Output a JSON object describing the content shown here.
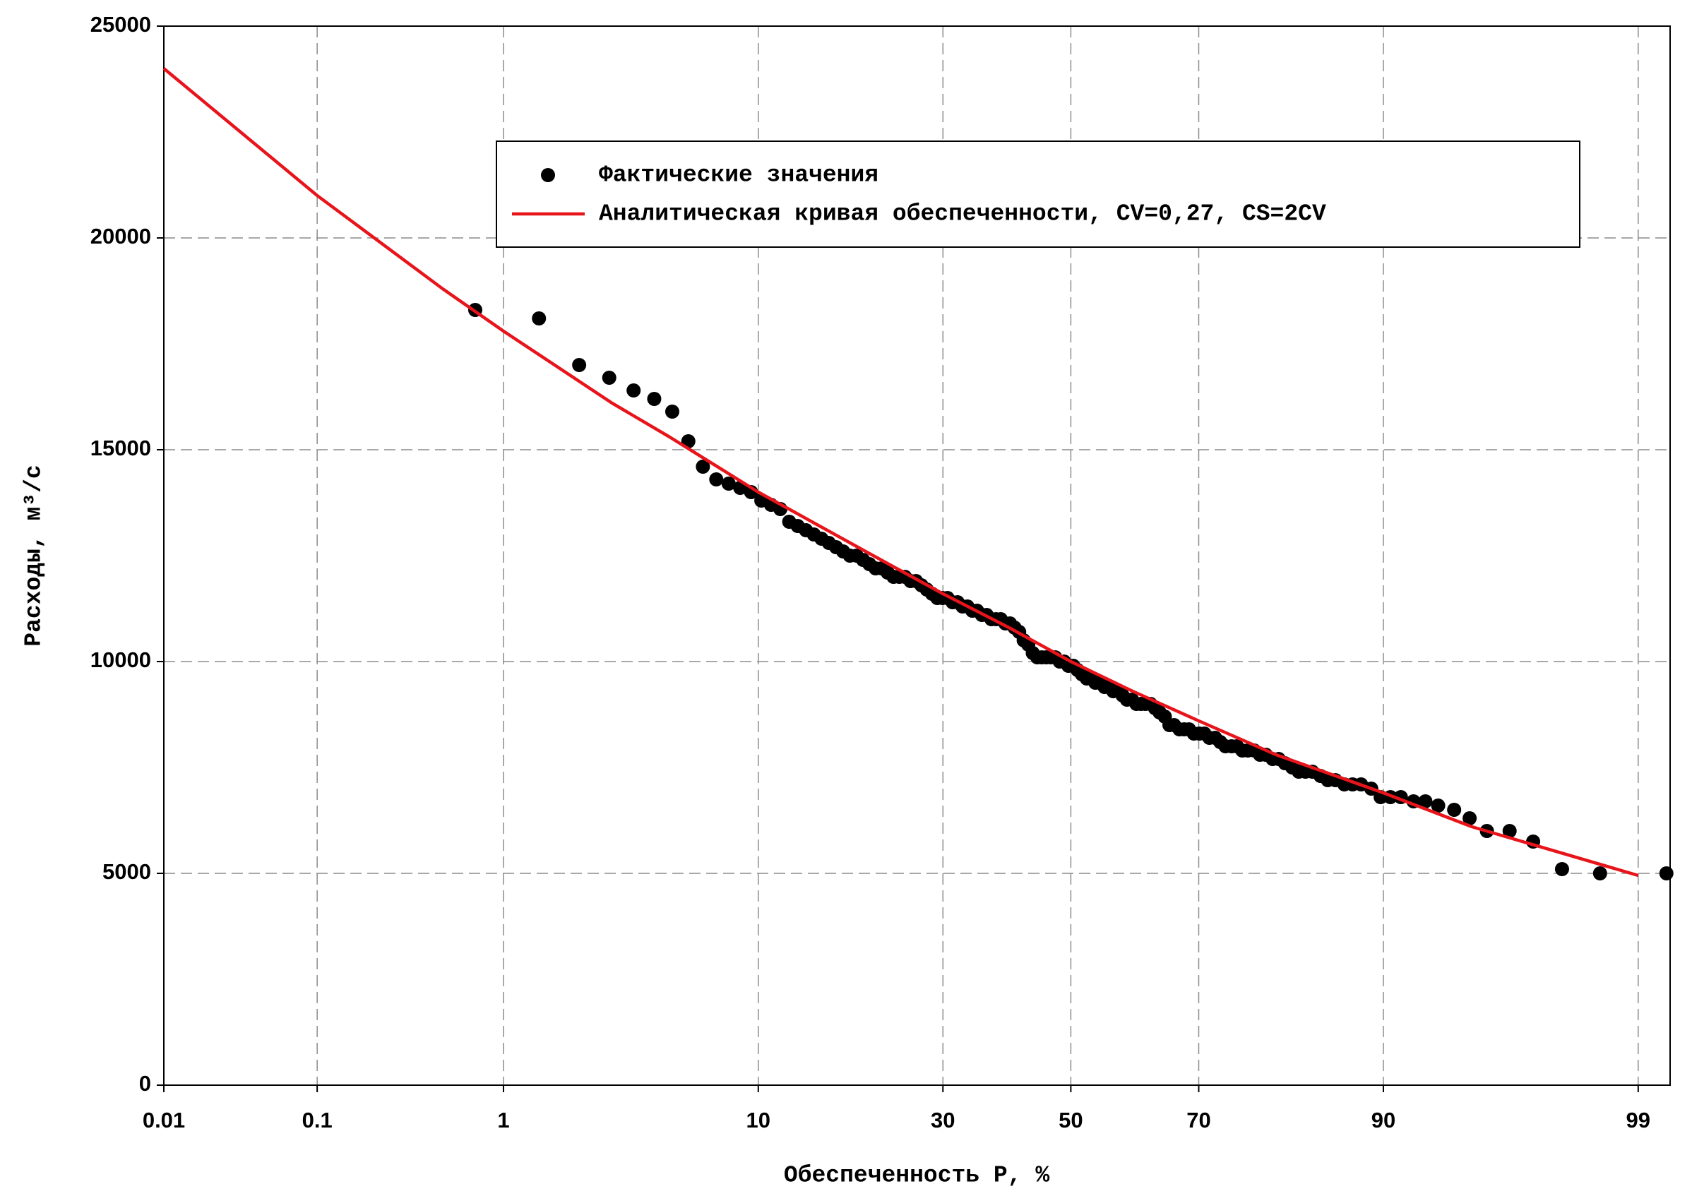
{
  "chart_data": {
    "type": "scatter-line",
    "x_label": "Обеспеченность P, %",
    "y_label": "Расходы, м³/с",
    "xscale": "probability",
    "xlim": [
      0.01,
      99.3
    ],
    "xticks": [
      0.01,
      0.1,
      1,
      10,
      30,
      50,
      70,
      90,
      99
    ],
    "ylim": [
      0,
      25000
    ],
    "yticks": [
      0,
      5000,
      10000,
      15000,
      20000,
      25000
    ],
    "grid": true,
    "legend": "top-right",
    "series": [
      {
        "name": "Фактические значения",
        "kind": "scatter",
        "color": "#000000",
        "x": [
          0.73,
          1.46,
          2.19,
          2.92,
          3.65,
          4.38,
          5.11,
          5.84,
          6.57,
          7.3,
          8.03,
          8.76,
          9.49,
          10.22,
          10.95,
          11.68,
          12.41,
          13.14,
          13.87,
          14.6,
          15.33,
          16.06,
          16.79,
          17.52,
          18.25,
          18.98,
          19.71,
          20.44,
          21.17,
          21.9,
          22.63,
          23.36,
          24.09,
          24.82,
          25.55,
          26.28,
          27.01,
          27.74,
          28.47,
          29.2,
          29.93,
          30.66,
          31.39,
          32.12,
          32.85,
          33.58,
          34.31,
          35.04,
          35.77,
          36.5,
          37.23,
          37.96,
          38.69,
          39.42,
          40.15,
          40.88,
          41.61,
          42.34,
          43.07,
          43.8,
          44.53,
          45.26,
          45.99,
          46.72,
          47.45,
          48.18,
          48.9,
          49.6,
          50.4,
          51.1,
          51.8,
          52.6,
          53.3,
          54.0,
          54.7,
          55.5,
          56.2,
          56.9,
          57.7,
          58.4,
          59.1,
          59.9,
          60.6,
          61.3,
          62.0,
          62.8,
          63.5,
          64.2,
          65.0,
          65.7,
          66.4,
          67.2,
          67.9,
          68.6,
          69.3,
          70.1,
          70.8,
          71.5,
          72.3,
          73.0,
          73.7,
          74.5,
          75.2,
          75.9,
          76.6,
          77.4,
          78.1,
          78.8,
          79.6,
          80.3,
          81.0,
          81.8,
          82.5,
          83.2,
          83.9,
          84.7,
          85.4,
          86.1,
          86.9,
          87.6,
          88.3,
          89.1,
          89.8,
          90.5,
          91.2,
          92.0,
          92.7,
          93.4,
          94.2,
          94.9,
          95.6,
          96.4,
          97.1,
          97.8,
          98.5,
          99.27
        ],
        "values": [
          18300,
          18100,
          17000,
          16700,
          16400,
          16200,
          15900,
          15200,
          14600,
          14300,
          14200,
          14100,
          14000,
          13800,
          13700,
          13600,
          13300,
          13200,
          13100,
          13000,
          12900,
          12800,
          12700,
          12600,
          12500,
          12500,
          12400,
          12300,
          12200,
          12200,
          12100,
          12000,
          12000,
          12000,
          11900,
          11900,
          11800,
          11700,
          11600,
          11500,
          11500,
          11500,
          11400,
          11400,
          11300,
          11300,
          11200,
          11200,
          11100,
          11100,
          11000,
          11000,
          11000,
          10900,
          10900,
          10800,
          10700,
          10500,
          10400,
          10200,
          10100,
          10100,
          10100,
          10100,
          10100,
          10000,
          10000,
          9900,
          9900,
          9800,
          9700,
          9600,
          9600,
          9500,
          9500,
          9400,
          9400,
          9300,
          9300,
          9200,
          9100,
          9100,
          9000,
          9000,
          9000,
          9000,
          8900,
          8800,
          8700,
          8500,
          8500,
          8400,
          8400,
          8400,
          8300,
          8300,
          8300,
          8200,
          8200,
          8100,
          8000,
          8000,
          8000,
          7900,
          7900,
          7900,
          7800,
          7800,
          7700,
          7700,
          7600,
          7500,
          7400,
          7400,
          7400,
          7300,
          7200,
          7200,
          7100,
          7100,
          7100,
          7000,
          6800,
          6800,
          6800,
          6700,
          6700,
          6600,
          6500,
          6300,
          6000,
          6000,
          5750,
          5100,
          5000,
          5000
        ]
      },
      {
        "name": "Аналитическая кривая обеспеченности, CV=0,27, CS=2CV",
        "kind": "line",
        "color": "#e8141b",
        "x": [
          0.01,
          0.1,
          0.5,
          1,
          3,
          5,
          10,
          20,
          30,
          40,
          50,
          60,
          70,
          80,
          90,
          95,
          99
        ],
        "values": [
          24000,
          21000,
          18800,
          17800,
          16100,
          15300,
          14000,
          12600,
          11600,
          10800,
          10000,
          9300,
          8600,
          7800,
          6900,
          6100,
          4950
        ]
      }
    ]
  }
}
